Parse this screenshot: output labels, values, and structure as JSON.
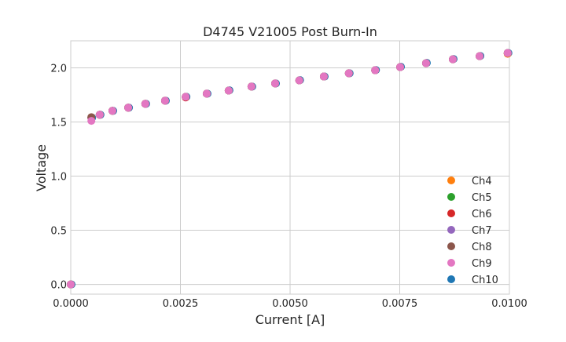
{
  "chart_data": {
    "type": "scatter",
    "title": "D4745 V21005 Post Burn-In",
    "xlabel": "Current [A]",
    "ylabel": "Voltage",
    "xlim": [
      0,
      0.01
    ],
    "ylim": [
      -0.09,
      2.25
    ],
    "xticks": [
      "0.0000",
      "0.0025",
      "0.0050",
      "0.0075",
      "0.0100"
    ],
    "xtick_values": [
      0,
      0.0025,
      0.005,
      0.0075,
      0.01
    ],
    "yticks": [
      "0.0",
      "0.5",
      "1.0",
      "1.5",
      "2.0"
    ],
    "ytick_values": [
      0,
      0.5,
      1.0,
      1.5,
      2.0
    ],
    "grid": true,
    "legend_position": "bottom-right",
    "x": [
      0,
      0.00047,
      0.00066,
      0.00095,
      0.00131,
      0.0017,
      0.00215,
      0.00262,
      0.0031,
      0.0036,
      0.00412,
      0.00466,
      0.00521,
      0.00577,
      0.00634,
      0.00694,
      0.00751,
      0.0081,
      0.00871,
      0.00932,
      0.00996
    ],
    "series": [
      {
        "name": "Ch4",
        "color": "#ff7f0e",
        "y": [
          0,
          1.54,
          1.567,
          1.603,
          1.632,
          1.668,
          1.697,
          1.733,
          1.762,
          1.79,
          1.827,
          1.856,
          1.884,
          1.92,
          1.95,
          1.978,
          2.007,
          2.043,
          2.079,
          2.108,
          2.13
        ]
      },
      {
        "name": "Ch5",
        "color": "#2ca02c",
        "y": [
          0,
          1.54,
          1.567,
          1.603,
          1.632,
          1.668,
          1.697,
          1.733,
          1.762,
          1.79,
          1.827,
          1.856,
          1.884,
          1.92,
          1.95,
          1.978,
          2.007,
          2.043,
          2.079,
          2.108,
          2.137
        ]
      },
      {
        "name": "Ch6",
        "color": "#d62728",
        "y": [
          0,
          1.54,
          1.567,
          1.603,
          1.632,
          1.668,
          1.697,
          1.727,
          1.762,
          1.79,
          1.827,
          1.856,
          1.884,
          1.92,
          1.95,
          1.978,
          2.007,
          2.043,
          2.079,
          2.108,
          2.137
        ]
      },
      {
        "name": "Ch7",
        "color": "#9467bd",
        "y": [
          0,
          1.54,
          1.567,
          1.603,
          1.632,
          1.668,
          1.697,
          1.733,
          1.762,
          1.79,
          1.827,
          1.856,
          1.884,
          1.92,
          1.95,
          1.978,
          2.007,
          2.043,
          2.079,
          2.108,
          2.137
        ]
      },
      {
        "name": "Ch8",
        "color": "#8c564b",
        "y": [
          0,
          1.545,
          1.567,
          1.603,
          1.632,
          1.668,
          1.697,
          1.733,
          1.762,
          1.79,
          1.827,
          1.856,
          1.884,
          1.92,
          1.95,
          1.978,
          2.007,
          2.043,
          2.079,
          2.108,
          2.137
        ]
      },
      {
        "name": "Ch9",
        "color": "#e377c2",
        "y": [
          0,
          1.51,
          1.567,
          1.603,
          1.632,
          1.668,
          1.697,
          1.733,
          1.762,
          1.79,
          1.827,
          1.856,
          1.884,
          1.92,
          1.95,
          1.978,
          2.007,
          2.043,
          2.079,
          2.108,
          2.137
        ]
      },
      {
        "name": "Ch10",
        "color": "#1f77b4",
        "y": [
          0,
          1.54,
          1.567,
          1.603,
          1.632,
          1.668,
          1.697,
          1.733,
          1.762,
          1.793,
          1.827,
          1.856,
          1.887,
          1.92,
          1.95,
          1.98,
          2.01,
          2.046,
          2.082,
          2.11,
          2.137
        ]
      }
    ]
  }
}
